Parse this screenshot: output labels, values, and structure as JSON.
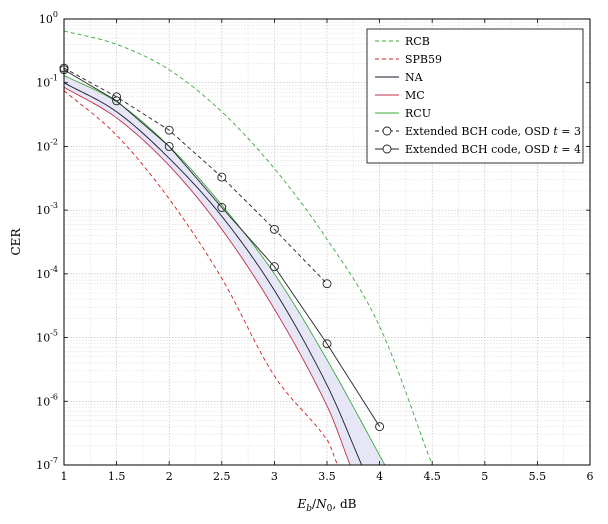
{
  "chart_data": {
    "type": "line",
    "title": "",
    "xlabel": "E_b/N_0, dB",
    "ylabel": "CER",
    "xlim": [
      1,
      6
    ],
    "ylim": [
      1e-07,
      1
    ],
    "yscale": "log",
    "grid": true,
    "legend_position": "top-right",
    "x_ticks": [
      1,
      1.5,
      2,
      2.5,
      3,
      3.5,
      4,
      4.5,
      5,
      5.5,
      6
    ],
    "x_tick_labels": [
      "1",
      "1.5",
      "2",
      "2.5",
      "3",
      "3.5",
      "4",
      "4.5",
      "5",
      "5.5",
      "6"
    ],
    "y_ticks": [
      1e-07,
      1e-06,
      1e-05,
      0.0001,
      0.001,
      0.01,
      0.1,
      1
    ],
    "y_tick_labels": [
      {
        "base": "10",
        "exp": "-7"
      },
      {
        "base": "10",
        "exp": "-6"
      },
      {
        "base": "10",
        "exp": "-5"
      },
      {
        "base": "10",
        "exp": "-4"
      },
      {
        "base": "10",
        "exp": "-3"
      },
      {
        "base": "10",
        "exp": "-2"
      },
      {
        "base": "10",
        "exp": "-1"
      },
      {
        "base": "10",
        "exp": "0"
      }
    ],
    "shaded_region": {
      "between": [
        "MC",
        "RCU"
      ],
      "color": "#e6e6f7"
    },
    "series": [
      {
        "name": "RCB",
        "color": "#3aa83a",
        "dash": "dashed",
        "marker": "none",
        "x": [
          1,
          1.5,
          2,
          2.5,
          3,
          3.5,
          4,
          4.5
        ],
        "y": [
          0.65,
          0.4,
          0.16,
          0.035,
          0.0045,
          0.00035,
          1.5e-05,
          1e-07
        ]
      },
      {
        "name": "SPB59",
        "color": "#d02020",
        "dash": "dashed",
        "marker": "none",
        "x": [
          1,
          1.5,
          2,
          2.5,
          3,
          3.5,
          3.6
        ],
        "y": [
          0.075,
          0.015,
          0.0015,
          8.5e-05,
          2.5e-06,
          2.5e-07,
          1e-07
        ]
      },
      {
        "name": "NA",
        "color": "#1a1a2e",
        "dash": "solid",
        "marker": "none",
        "x": [
          1,
          1.5,
          2,
          2.5,
          3,
          3.5,
          3.83
        ],
        "y": [
          0.1,
          0.035,
          0.0065,
          0.0008,
          5.5e-05,
          1.8e-06,
          1e-07
        ]
      },
      {
        "name": "MC",
        "color": "#c0304a",
        "dash": "solid",
        "marker": "none",
        "x": [
          1,
          1.5,
          2,
          2.5,
          3,
          3.5,
          3.72
        ],
        "y": [
          0.085,
          0.028,
          0.005,
          0.0005,
          2.8e-05,
          8.5e-07,
          1e-07
        ]
      },
      {
        "name": "RCU",
        "color": "#3aa83a",
        "dash": "solid",
        "marker": "none",
        "x": [
          1,
          1.5,
          2,
          2.5,
          3,
          3.5,
          4.05
        ],
        "y": [
          0.13,
          0.05,
          0.01,
          0.0012,
          0.0001,
          4.5e-06,
          1e-07
        ]
      },
      {
        "name": "Extended BCH code, OSD t = 3",
        "color": "#222222",
        "dash": "dashed",
        "marker": "circle",
        "x": [
          1,
          1.5,
          2,
          2.5,
          3,
          3.5
        ],
        "y": [
          0.17,
          0.06,
          0.018,
          0.0033,
          0.0005,
          7e-05
        ]
      },
      {
        "name": "Extended BCH code, OSD t = 4",
        "color": "#222222",
        "dash": "solid",
        "marker": "circle",
        "x": [
          1,
          1.5,
          2,
          2.5,
          3,
          3.5,
          4
        ],
        "y": [
          0.16,
          0.052,
          0.01,
          0.0011,
          0.00013,
          8e-06,
          4e-07
        ]
      }
    ]
  }
}
